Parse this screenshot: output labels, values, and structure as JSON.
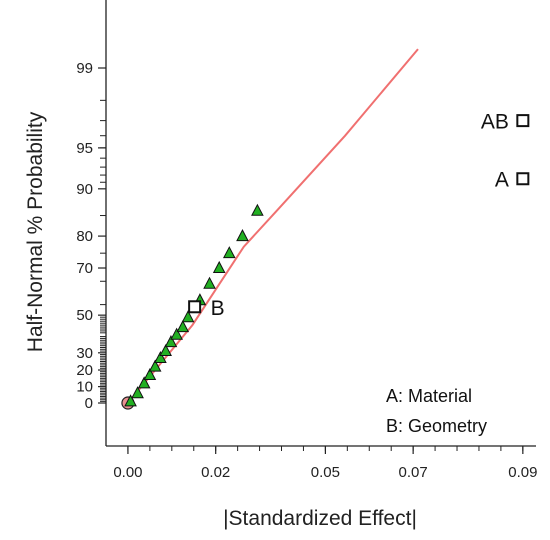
{
  "chart_data": {
    "type": "scatter",
    "xlabel": "|Standardized Effect|",
    "ylabel": "Half-Normal % Probability",
    "xlim": [
      -0.005,
      0.093
    ],
    "x_ticks": [
      {
        "value": 0.0,
        "label": "0.00"
      },
      {
        "value": 0.02,
        "label": "0.02"
      },
      {
        "value": 0.045,
        "label": "0.05"
      },
      {
        "value": 0.065,
        "label": "0.07"
      },
      {
        "value": 0.09,
        "label": "0.09"
      }
    ],
    "y_ticks": [
      0,
      10,
      20,
      30,
      50,
      70,
      80,
      90,
      95,
      99
    ],
    "reference_line": {
      "color": "#f07070",
      "points": [
        {
          "x": 0.0,
          "y": 0
        },
        {
          "x": 0.0147,
          "y": 45
        },
        {
          "x": 0.0264,
          "y": 77
        },
        {
          "x": 0.0339,
          "y": 86
        },
        {
          "x": 0.0495,
          "y": 96
        },
        {
          "x": 0.0661,
          "y": 99.35
        }
      ]
    },
    "error_points": [
      {
        "x": 0.0006,
        "y": 1
      },
      {
        "x": 0.0022,
        "y": 6
      },
      {
        "x": 0.0037,
        "y": 12
      },
      {
        "x": 0.005,
        "y": 17
      },
      {
        "x": 0.0062,
        "y": 22
      },
      {
        "x": 0.0074,
        "y": 27
      },
      {
        "x": 0.0086,
        "y": 31
      },
      {
        "x": 0.0098,
        "y": 36
      },
      {
        "x": 0.0111,
        "y": 40
      },
      {
        "x": 0.0125,
        "y": 44
      },
      {
        "x": 0.0137,
        "y": 49
      },
      {
        "x": 0.0164,
        "y": 57
      },
      {
        "x": 0.0186,
        "y": 64
      },
      {
        "x": 0.0208,
        "y": 70
      },
      {
        "x": 0.0231,
        "y": 75
      },
      {
        "x": 0.0261,
        "y": 80
      },
      {
        "x": 0.0295,
        "y": 86
      }
    ],
    "origin_point": {
      "x": 0.0,
      "y": 0
    },
    "effects": [
      {
        "label": "AB",
        "x": 0.09,
        "y": 97
      },
      {
        "label": "A",
        "x": 0.09,
        "y": 91.5
      },
      {
        "label": "B",
        "x": 0.0152,
        "y": 54
      }
    ],
    "legend": {
      "position": "bottom-right",
      "items": [
        "A: Material",
        "B: Geometry"
      ]
    },
    "colors": {
      "line": "#f07070",
      "triangle_fill": "#22b022",
      "origin_fill": "#e89090",
      "axis": "#222222"
    }
  }
}
